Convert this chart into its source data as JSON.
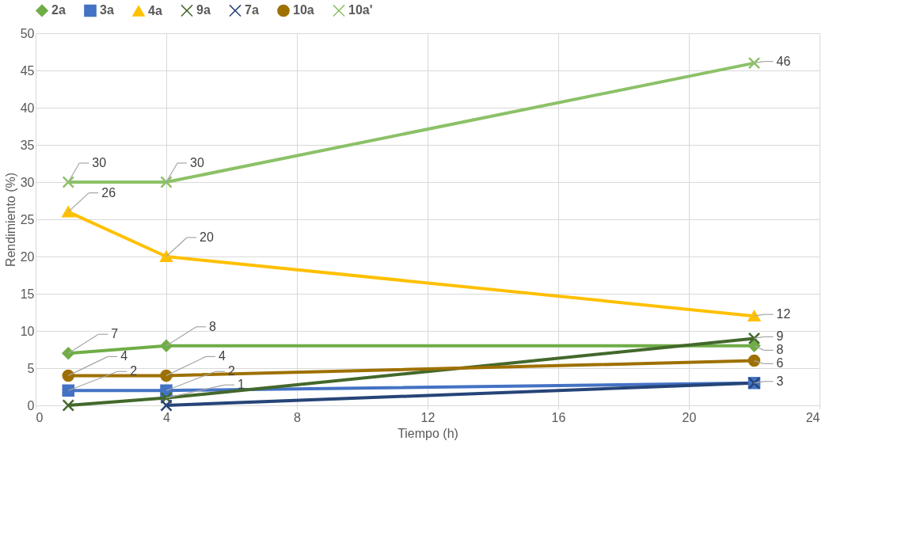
{
  "chart_data": {
    "type": "line",
    "xlabel": "Tiempo (h)",
    "ylabel": "Rendimiento (%)",
    "x": [
      1,
      4,
      22
    ],
    "xlim": [
      0,
      24
    ],
    "xticks": [
      0,
      4,
      8,
      12,
      16,
      20,
      24
    ],
    "ylim": [
      0,
      50
    ],
    "yticks": [
      0,
      5,
      10,
      15,
      20,
      25,
      30,
      35,
      40,
      45,
      50
    ],
    "grid": true,
    "legend": "top",
    "line_style": "solid",
    "series": [
      {
        "name": "2a",
        "color": "#70ad47",
        "marker": "diamond",
        "values": [
          7,
          8,
          8
        ],
        "value_labels": [
          "7",
          "8",
          "8"
        ]
      },
      {
        "name": "3a",
        "color": "#4472c4",
        "marker": "square",
        "values": [
          2,
          2,
          3
        ],
        "value_labels": [
          "2",
          "2",
          "3"
        ]
      },
      {
        "name": "4a",
        "color": "#ffc000",
        "marker": "triangle",
        "values": [
          26,
          20,
          12
        ],
        "value_labels": [
          "26",
          "20",
          "12"
        ]
      },
      {
        "name": "9a",
        "color": "#43682b",
        "marker": "cross",
        "values": [
          0,
          1,
          9
        ],
        "value_labels": [
          null,
          "1",
          "9"
        ]
      },
      {
        "name": "7a",
        "color": "#264478",
        "marker": "cross",
        "values": [
          null,
          0,
          3
        ],
        "value_labels": [
          null,
          null,
          null
        ]
      },
      {
        "name": "10a",
        "color": "#9e7000",
        "marker": "circle",
        "values": [
          4,
          4,
          6
        ],
        "value_labels": [
          "4",
          "4",
          "6"
        ]
      },
      {
        "name": "10a'",
        "color": "#8cc168",
        "marker": "cross",
        "values": [
          30,
          30,
          46
        ],
        "value_labels": [
          "30",
          "30",
          "46"
        ]
      }
    ]
  }
}
